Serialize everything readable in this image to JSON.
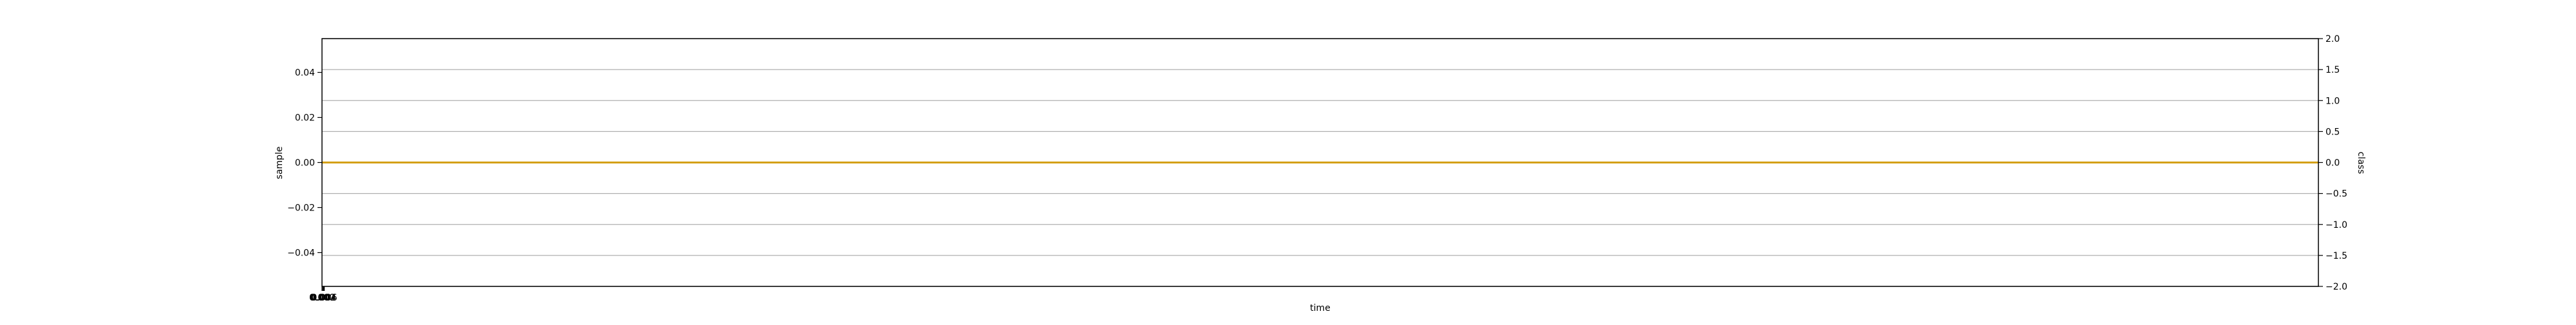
{
  "chart_data": {
    "type": "line",
    "title": "",
    "xlabel": "time",
    "ylabel": "sample",
    "y2label": "class",
    "xlim": [
      0,
      1
    ],
    "ylim": [
      -0.055,
      0.055
    ],
    "y2lim": [
      -2.0,
      2.0
    ],
    "x_tick_labels": [
      "0.000",
      "0.002",
      "0.004",
      "0.006"
    ],
    "y_ticks": [
      {
        "value": 0.04,
        "label": "0.04"
      },
      {
        "value": 0.02,
        "label": "0.02"
      },
      {
        "value": 0.0,
        "label": "0.00"
      },
      {
        "value": -0.02,
        "label": "−0.02"
      },
      {
        "value": -0.04,
        "label": "−0.04"
      }
    ],
    "y2_ticks": [
      {
        "value": 2.0,
        "label": "2.0"
      },
      {
        "value": 1.5,
        "label": "1.5"
      },
      {
        "value": 1.0,
        "label": "1.0"
      },
      {
        "value": 0.5,
        "label": "0.5"
      },
      {
        "value": 0.0,
        "label": "0.0"
      },
      {
        "value": -0.5,
        "label": "−0.5"
      },
      {
        "value": -1.0,
        "label": "−1.0"
      },
      {
        "value": -1.5,
        "label": "−1.5"
      },
      {
        "value": -2.0,
        "label": "−2.0"
      }
    ],
    "grid": true,
    "series": [
      {
        "axis": "y",
        "color": "#1f77b4",
        "x": [
          0,
          1
        ],
        "y": [
          0.0,
          0.0
        ]
      },
      {
        "axis": "y2",
        "color": "#d4a017",
        "x": [
          0,
          1
        ],
        "y": [
          0.0,
          0.0
        ]
      }
    ],
    "frame_color": "#000000",
    "grid_color": "#b0b0b0"
  }
}
